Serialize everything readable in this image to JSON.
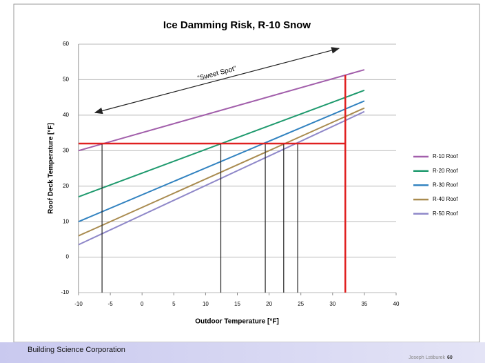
{
  "chart_data": {
    "type": "line",
    "title": "Ice Damming Risk, R-10 Snow",
    "xlabel": "Outdoor Temperature [°F]",
    "ylabel": "Roof Deck Temperature [°F]",
    "x": [
      -10,
      35
    ],
    "series": [
      {
        "name": "R-10 Roof",
        "color": "#a25fab",
        "values": [
          30,
          52.8
        ]
      },
      {
        "name": "R-20 Roof",
        "color": "#1f9a6e",
        "values": [
          17,
          47
        ]
      },
      {
        "name": "R-30 Roof",
        "color": "#3182c0",
        "values": [
          10,
          44
        ]
      },
      {
        "name": "R-40 Roof",
        "color": "#a98b4f",
        "values": [
          6,
          42
        ]
      },
      {
        "name": "R-50 Roof",
        "color": "#8f88c9",
        "values": [
          3.5,
          41
        ]
      }
    ],
    "xlim": [
      -10,
      40
    ],
    "xticks": [
      -10,
      -5,
      0,
      5,
      10,
      15,
      20,
      25,
      30,
      35,
      40
    ],
    "ylim": [
      -10,
      60
    ],
    "yticks": [
      -10,
      0,
      10,
      20,
      30,
      40,
      50,
      60
    ],
    "grid": true,
    "legend": "right",
    "threshold_y": 32,
    "threshold_color": "#e02020",
    "limit_x": 32,
    "intersections_x": [
      -6.3,
      12.4,
      19.4,
      22.3,
      24.5
    ],
    "arrow": {
      "x": [
        -7.4,
        31
      ],
      "y": [
        40.7,
        58.8
      ]
    },
    "annotation": "“Sweet Spot”"
  },
  "footer": {
    "organization": "Building Science Corporation",
    "author": "Joseph Lstiburek",
    "page": "60"
  }
}
